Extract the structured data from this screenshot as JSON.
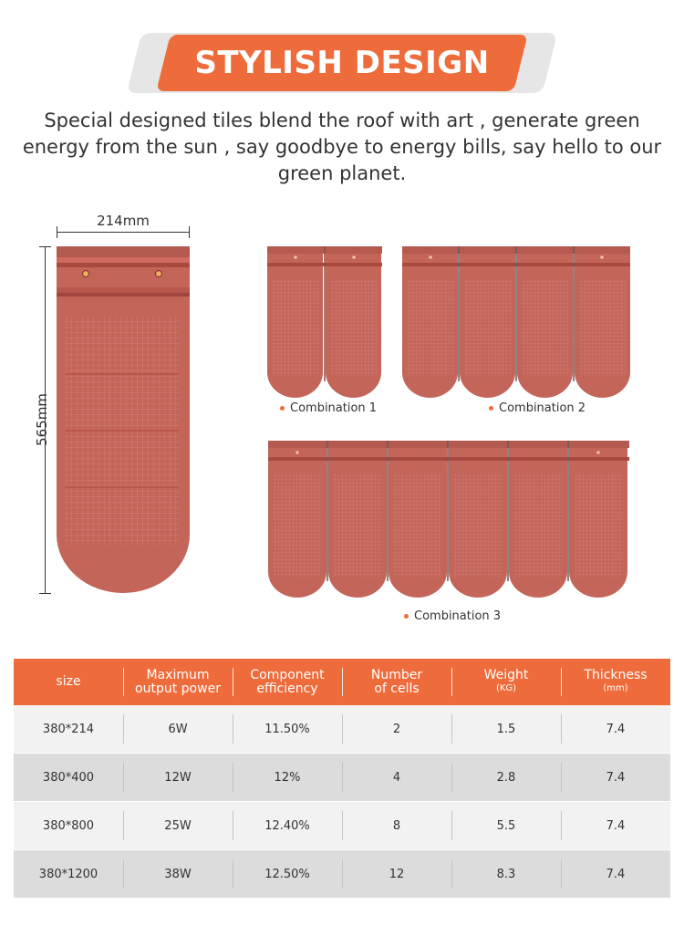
{
  "header": {
    "title": "STYLISH DESIGN"
  },
  "intro": {
    "text": "Special designed tiles blend the roof with art , generate green energy from the sun , say goodbye to energy bills, say hello to our green planet."
  },
  "dimensions": {
    "width_label": "214mm",
    "height_label": "565mm"
  },
  "combinations": [
    {
      "label": "Combination 1"
    },
    {
      "label": "Combination 2"
    },
    {
      "label": "Combination 3"
    }
  ],
  "colors": {
    "accent": "#ee6c3c",
    "tile": "#c7655a",
    "tile_dark": "#a8493f"
  },
  "table": {
    "headers": [
      {
        "line1": "size",
        "line2": "",
        "unit": ""
      },
      {
        "line1": "Maximum",
        "line2": "output power",
        "unit": ""
      },
      {
        "line1": "Component",
        "line2": "efficiency",
        "unit": ""
      },
      {
        "line1": "Number",
        "line2": "of cells",
        "unit": ""
      },
      {
        "line1": "Weight",
        "line2": "",
        "unit": "(KG)"
      },
      {
        "line1": "Thickness",
        "line2": "",
        "unit": "(mm)"
      }
    ],
    "rows": [
      [
        "380*214",
        "6W",
        "11.50%",
        "2",
        "1.5",
        "7.4"
      ],
      [
        "380*400",
        "12W",
        "12%",
        "4",
        "2.8",
        "7.4"
      ],
      [
        "380*800",
        "25W",
        "12.40%",
        "8",
        "5.5",
        "7.4"
      ],
      [
        "380*1200",
        "38W",
        "12.50%",
        "12",
        "8.3",
        "7.4"
      ]
    ]
  }
}
